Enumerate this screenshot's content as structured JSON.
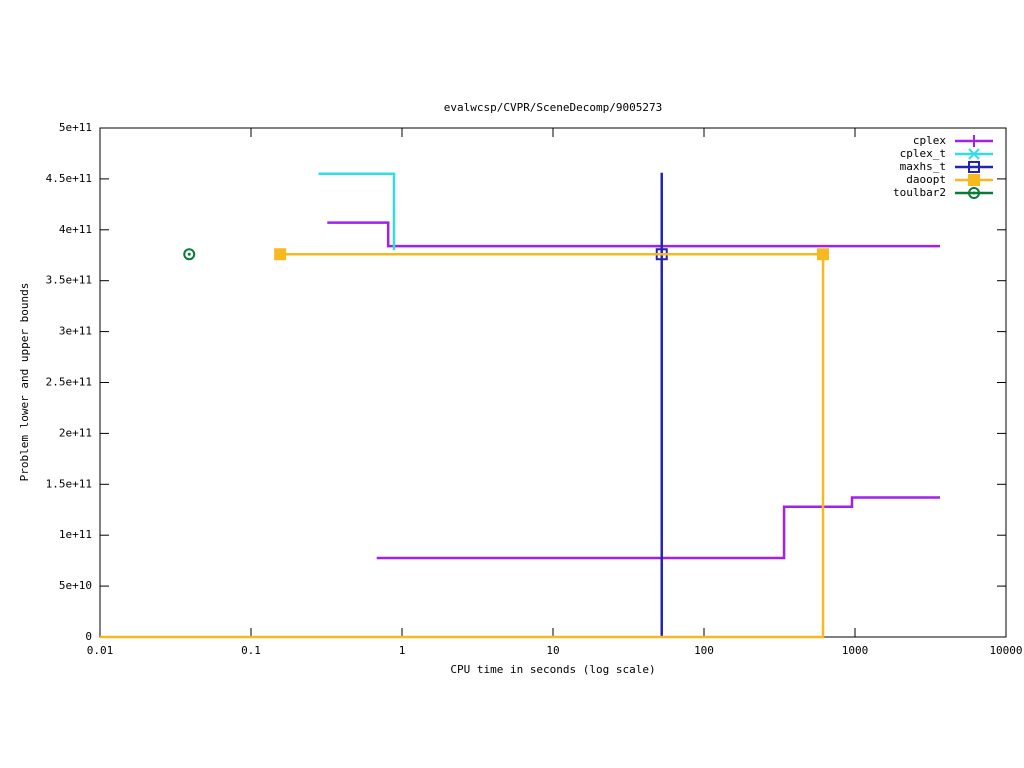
{
  "chart_data": {
    "type": "line",
    "title": "evalwcsp/CVPR/SceneDecomp/9005273",
    "x_label": "CPU time in seconds (log scale)",
    "y_label": "Problem lower and upper bounds",
    "x_log": true,
    "line_style": "steps",
    "legend": "top-right",
    "xlim": [
      0.01,
      10000
    ],
    "xticks": [
      0.01,
      0.1,
      1,
      10,
      100,
      1000,
      10000
    ],
    "ylim": [
      0,
      500000000000
    ],
    "yticks": [
      0,
      {
        "value": 50000000000,
        "label": "5e+10"
      },
      {
        "value": 100000000000,
        "label": "1e+11"
      },
      {
        "value": 150000000000,
        "label": "1.5e+11"
      },
      {
        "value": 200000000000,
        "label": "2e+11"
      },
      {
        "value": 250000000000,
        "label": "2.5e+11"
      },
      {
        "value": 300000000000,
        "label": "3e+11"
      },
      {
        "value": 350000000000,
        "label": "3.5e+11"
      },
      {
        "value": 400000000000,
        "label": "4e+11"
      },
      {
        "value": 450000000000,
        "label": "4.5e+11"
      },
      {
        "value": 500000000000,
        "label": "5e+11"
      }
    ],
    "series": [
      {
        "name": "cplex",
        "color": "#a020f0",
        "marker": "plus",
        "x": [
          0.32,
          0.81,
          3656,
          3656,
          0.68,
          339,
          955,
          3656
        ],
        "values": [
          407000000000,
          384000000000,
          384000000000,
          null,
          77600000000,
          128000000000,
          137000000000,
          137000000000
        ]
      },
      {
        "name": "cplex_t",
        "color": "#33dde6",
        "marker": "cross",
        "x": [
          0.28,
          0.885
        ],
        "values": [
          455000000000,
          380000000000
        ]
      },
      {
        "name": "maxhs_t",
        "color": "#2424b4",
        "marker": "open-square",
        "x": [
          52.5,
          52.5
        ],
        "values": [
          456000000000,
          0
        ],
        "points_x": [
          52.5
        ],
        "points": [
          376000000000
        ]
      },
      {
        "name": "daoopt",
        "color": "#f8b820",
        "marker": "square",
        "x": [
          0.156,
          614,
          614,
          0.01
        ],
        "values": [
          376000000000,
          376000000000,
          0,
          0
        ],
        "points_x": [
          0.156,
          614
        ],
        "points": [
          376000000000,
          376000000000
        ]
      },
      {
        "name": "toulbar2",
        "color": "#0a7a3a",
        "marker": "circle",
        "x": [],
        "values": [],
        "points_x": [
          0.039
        ],
        "points": [
          376000000000
        ]
      }
    ]
  }
}
